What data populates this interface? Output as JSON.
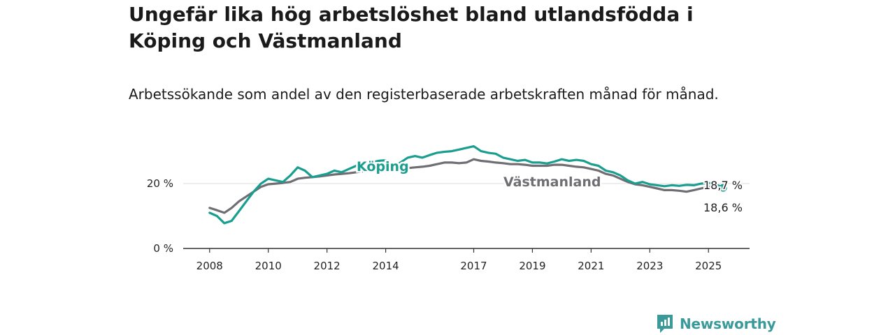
{
  "title": "Ungefär lika hög arbetslöshet bland utlandsfödda i Köping och Västmanland",
  "subtitle": "Arbetssökande som andel av den registerbaserade arbetskraften månad för månad.",
  "brand": {
    "name": "Newsworthy",
    "icon": "newsworthy-logo-icon",
    "color": "#3a9a9a"
  },
  "colors": {
    "koping": "#1a9e8f",
    "vastmanland": "#6e6e73",
    "grid": "#dddddd",
    "axis": "#333333"
  },
  "chart_data": {
    "type": "line",
    "title": "Ungefär lika hög arbetslöshet bland utlandsfödda i Köping och Västmanland",
    "subtitle": "Arbetssökande som andel av den registerbaserade arbetskraften månad för månad.",
    "xlabel": "",
    "ylabel": "",
    "x_ticks": [
      {
        "value": 2008,
        "label": "2008"
      },
      {
        "value": 2010,
        "label": "2010"
      },
      {
        "value": 2012,
        "label": "2012"
      },
      {
        "value": 2014,
        "label": "2014"
      },
      {
        "value": 2017,
        "label": "2017"
      },
      {
        "value": 2019,
        "label": "2019"
      },
      {
        "value": 2021,
        "label": "2021"
      },
      {
        "value": 2023,
        "label": "2023"
      },
      {
        "value": 2025,
        "label": "2025"
      }
    ],
    "y_ticks": [
      {
        "value": 0,
        "label": "0 %"
      },
      {
        "value": 20,
        "label": "20 %"
      }
    ],
    "xlim": [
      2007.1,
      2026.4
    ],
    "ylim": [
      0,
      34
    ],
    "grid": "horizontal",
    "series": [
      {
        "name": "Köping",
        "end_label": "18,7 %",
        "x": [
          2008.0,
          2008.25,
          2008.5,
          2008.75,
          2009.0,
          2009.25,
          2009.5,
          2009.75,
          2010.0,
          2010.25,
          2010.5,
          2010.75,
          2011.0,
          2011.25,
          2011.5,
          2011.75,
          2012.0,
          2012.25,
          2012.5,
          2012.75,
          2013.0,
          2013.25,
          2013.5,
          2013.75,
          2014.0,
          2014.25,
          2014.5,
          2014.75,
          2015.0,
          2015.25,
          2015.5,
          2015.75,
          2016.0,
          2016.25,
          2016.5,
          2016.75,
          2017.0,
          2017.25,
          2017.5,
          2017.75,
          2018.0,
          2018.25,
          2018.5,
          2018.75,
          2019.0,
          2019.25,
          2019.5,
          2019.75,
          2020.0,
          2020.25,
          2020.5,
          2020.75,
          2021.0,
          2021.25,
          2021.5,
          2021.75,
          2022.0,
          2022.25,
          2022.5,
          2022.75,
          2023.0,
          2023.25,
          2023.5,
          2023.75,
          2024.0,
          2024.25,
          2024.5,
          2024.75,
          2025.0,
          2025.25,
          2025.5
        ],
        "values": [
          11.0,
          10.0,
          7.8,
          8.5,
          11.5,
          14.5,
          17.5,
          20.0,
          21.5,
          21.0,
          20.5,
          22.5,
          25.0,
          24.0,
          22.0,
          22.5,
          23.0,
          24.0,
          23.5,
          24.5,
          25.5,
          26.0,
          26.5,
          27.0,
          27.2,
          25.0,
          26.5,
          28.0,
          28.5,
          28.0,
          28.8,
          29.5,
          29.8,
          30.0,
          30.5,
          31.0,
          31.5,
          30.0,
          29.5,
          29.2,
          28.0,
          27.5,
          27.0,
          27.3,
          26.5,
          26.5,
          26.2,
          26.8,
          27.5,
          27.0,
          27.3,
          27.0,
          26.0,
          25.5,
          24.0,
          23.5,
          22.5,
          21.0,
          20.0,
          20.5,
          19.8,
          19.5,
          19.2,
          19.5,
          19.3,
          19.6,
          19.5,
          20.0,
          20.2,
          19.8,
          18.7
        ]
      },
      {
        "name": "Västmanland",
        "end_label": "18,6 %",
        "x": [
          2008.0,
          2008.25,
          2008.5,
          2008.75,
          2009.0,
          2009.25,
          2009.5,
          2009.75,
          2010.0,
          2010.25,
          2010.5,
          2010.75,
          2011.0,
          2011.25,
          2011.5,
          2011.75,
          2012.0,
          2012.25,
          2012.5,
          2012.75,
          2013.0,
          2013.25,
          2013.5,
          2013.75,
          2014.0,
          2014.25,
          2014.5,
          2014.75,
          2015.0,
          2015.25,
          2015.5,
          2015.75,
          2016.0,
          2016.25,
          2016.5,
          2016.75,
          2017.0,
          2017.25,
          2017.5,
          2017.75,
          2018.0,
          2018.25,
          2018.5,
          2018.75,
          2019.0,
          2019.25,
          2019.5,
          2019.75,
          2020.0,
          2020.25,
          2020.5,
          2020.75,
          2021.0,
          2021.25,
          2021.5,
          2021.75,
          2022.0,
          2022.25,
          2022.5,
          2022.75,
          2023.0,
          2023.25,
          2023.5,
          2023.75,
          2024.0,
          2024.25,
          2024.5,
          2024.75,
          2025.0,
          2025.25,
          2025.5
        ],
        "values": [
          12.5,
          11.8,
          11.0,
          12.5,
          14.5,
          16.0,
          17.5,
          19.0,
          19.8,
          20.0,
          20.2,
          20.5,
          21.5,
          21.8,
          22.0,
          22.2,
          22.5,
          22.8,
          23.0,
          23.2,
          23.5,
          23.8,
          24.0,
          24.5,
          24.8,
          24.5,
          24.0,
          24.8,
          25.0,
          25.2,
          25.5,
          26.0,
          26.5,
          26.5,
          26.3,
          26.5,
          27.5,
          27.0,
          26.8,
          26.5,
          26.3,
          26.0,
          26.0,
          25.8,
          25.5,
          25.5,
          25.5,
          25.8,
          25.8,
          25.5,
          25.2,
          25.0,
          24.5,
          24.0,
          23.0,
          22.5,
          21.5,
          20.5,
          19.8,
          19.5,
          19.0,
          18.5,
          18.0,
          18.0,
          17.8,
          17.5,
          18.0,
          18.5,
          19.0,
          19.0,
          18.6
        ]
      }
    ]
  }
}
